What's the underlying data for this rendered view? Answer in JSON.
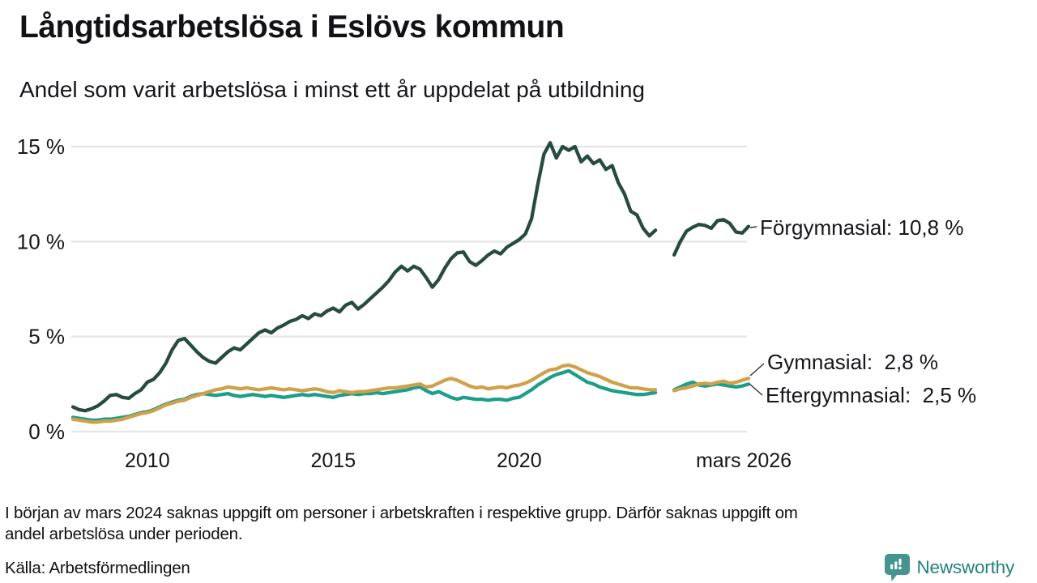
{
  "header": {
    "title": "Långtidsarbetslösa i Eslövs kommun",
    "subtitle": "Andel som varit arbetslösa i minst ett år uppdelat på utbildning"
  },
  "chart_data": {
    "type": "line",
    "title": "Långtidsarbetslösa i Eslövs kommun",
    "subtitle": "Andel som varit arbetslösa i minst ett år uppdelat på utbildning",
    "unit": "%",
    "grid": true,
    "legend_position": "end-of-line-labels-right",
    "x_axis": {
      "start_year": 2008,
      "step_years": 0.16667,
      "end_year": 2026.17,
      "tick_positions": [
        2010,
        2015,
        2020,
        2026.17
      ],
      "tick_labels": [
        "2010",
        "2015",
        "2020",
        "mars 2026"
      ],
      "data_gap": "mars 2024"
    },
    "y_axis": {
      "tick_values": [
        0,
        5,
        10,
        15
      ],
      "tick_labels": [
        "0 %",
        "5 %",
        "10 %",
        "15 %"
      ],
      "range": [
        0,
        15.6
      ]
    },
    "colors": {
      "forgymnasial": "#274b41",
      "gymnasial": "#d0a04b",
      "eftergymnasial": "#1d9e8b",
      "gridline": "#e6e6e9",
      "label_text": "#16161b",
      "connector": "#333333"
    },
    "series": [
      {
        "id": "eftergymnasial",
        "name": "Eftergymnasial",
        "end_label": "Eftergymnasial:  2,5 %",
        "last_value_text": "2,5 %",
        "color": "#1d9e8b",
        "values": [
          0.75,
          0.7,
          0.65,
          0.6,
          0.6,
          0.65,
          0.65,
          0.7,
          0.75,
          0.8,
          0.9,
          1.0,
          1.05,
          1.15,
          1.3,
          1.45,
          1.55,
          1.65,
          1.7,
          1.85,
          1.95,
          2.0,
          1.95,
          1.9,
          1.95,
          2.0,
          1.9,
          1.85,
          1.9,
          1.95,
          1.9,
          1.85,
          1.9,
          1.85,
          1.8,
          1.85,
          1.9,
          1.95,
          1.9,
          1.95,
          1.9,
          1.85,
          1.8,
          1.9,
          1.95,
          2.0,
          1.95,
          2.0,
          2.0,
          2.05,
          2.0,
          2.05,
          2.1,
          2.15,
          2.2,
          2.3,
          2.35,
          2.15,
          2.0,
          2.1,
          1.95,
          1.8,
          1.7,
          1.8,
          1.75,
          1.7,
          1.7,
          1.65,
          1.7,
          1.7,
          1.65,
          1.75,
          1.8,
          2.0,
          2.2,
          2.45,
          2.65,
          2.85,
          3.0,
          3.1,
          3.2,
          3.0,
          2.8,
          2.6,
          2.5,
          2.35,
          2.25,
          2.15,
          2.1,
          2.05,
          2.0,
          1.95,
          1.95,
          2.0,
          2.05,
          null,
          null,
          2.2,
          2.35,
          2.5,
          2.6,
          2.45,
          2.4,
          2.45,
          2.5,
          2.45,
          2.4,
          2.35,
          2.4,
          2.5
        ]
      },
      {
        "id": "gymnasial",
        "name": "Gymnasial",
        "end_label": "Gymnasial:  2,8 %",
        "last_value_text": "2,8 %",
        "color": "#d0a04b",
        "values": [
          0.65,
          0.6,
          0.55,
          0.5,
          0.5,
          0.55,
          0.55,
          0.6,
          0.65,
          0.75,
          0.85,
          0.95,
          1.0,
          1.1,
          1.25,
          1.4,
          1.5,
          1.6,
          1.65,
          1.8,
          1.9,
          2.0,
          2.1,
          2.2,
          2.25,
          2.35,
          2.3,
          2.25,
          2.3,
          2.25,
          2.2,
          2.25,
          2.3,
          2.25,
          2.2,
          2.25,
          2.2,
          2.15,
          2.2,
          2.25,
          2.2,
          2.1,
          2.05,
          2.15,
          2.1,
          2.05,
          2.1,
          2.1,
          2.15,
          2.2,
          2.25,
          2.3,
          2.3,
          2.35,
          2.4,
          2.45,
          2.5,
          2.35,
          2.4,
          2.55,
          2.7,
          2.8,
          2.7,
          2.55,
          2.4,
          2.3,
          2.35,
          2.25,
          2.3,
          2.35,
          2.3,
          2.4,
          2.45,
          2.55,
          2.7,
          2.9,
          3.1,
          3.25,
          3.3,
          3.45,
          3.5,
          3.4,
          3.25,
          3.1,
          3.0,
          2.9,
          2.75,
          2.6,
          2.5,
          2.4,
          2.3,
          2.3,
          2.25,
          2.2,
          2.2,
          null,
          null,
          2.15,
          2.25,
          2.3,
          2.4,
          2.5,
          2.55,
          2.5,
          2.6,
          2.65,
          2.55,
          2.6,
          2.7,
          2.8
        ]
      },
      {
        "id": "forgymnasial",
        "name": "Förgymnasial",
        "end_label": "Förgymnasial: 10,8 %",
        "last_value_text": "10,8 %",
        "color": "#274b41",
        "values": [
          1.3,
          1.15,
          1.1,
          1.2,
          1.35,
          1.6,
          1.9,
          1.95,
          1.8,
          1.75,
          2.0,
          2.2,
          2.6,
          2.75,
          3.1,
          3.6,
          4.3,
          4.8,
          4.9,
          4.55,
          4.2,
          3.9,
          3.7,
          3.6,
          3.9,
          4.2,
          4.4,
          4.3,
          4.6,
          4.9,
          5.2,
          5.35,
          5.2,
          5.45,
          5.6,
          5.8,
          5.9,
          6.1,
          5.95,
          6.2,
          6.1,
          6.35,
          6.5,
          6.3,
          6.65,
          6.8,
          6.45,
          6.7,
          7.0,
          7.3,
          7.6,
          7.95,
          8.4,
          8.7,
          8.45,
          8.7,
          8.55,
          8.1,
          7.6,
          8.0,
          8.6,
          9.1,
          9.4,
          9.45,
          8.95,
          8.75,
          9.0,
          9.3,
          9.5,
          9.35,
          9.7,
          9.9,
          10.1,
          10.4,
          11.2,
          13.0,
          14.6,
          15.2,
          14.4,
          15.0,
          14.8,
          15.0,
          14.2,
          14.5,
          14.1,
          14.3,
          13.8,
          14.0,
          13.1,
          12.5,
          11.6,
          11.4,
          10.7,
          10.3,
          10.6,
          null,
          null,
          9.3,
          10.0,
          10.55,
          10.75,
          10.9,
          10.85,
          10.7,
          11.1,
          11.15,
          10.95,
          10.5,
          10.45,
          10.8
        ]
      }
    ],
    "annotations": [
      {
        "text": "Förgymnasial: 10,8 %"
      },
      {
        "text": "Gymnasial:  2,8 %"
      },
      {
        "text": "Eftergymnasial:  2,5 %"
      }
    ]
  },
  "footer": {
    "note_lines": [
      "I början av mars 2024 saknas uppgift om personer i arbetskraften i respektive grupp. Därför saknas uppgift om",
      "andel arbetslösa under perioden."
    ],
    "source": "Källa: Arbetsförmedlingen",
    "brand": "Newsworthy",
    "brand_color": "#1f827a",
    "brand_icon_color": "#43958d"
  }
}
